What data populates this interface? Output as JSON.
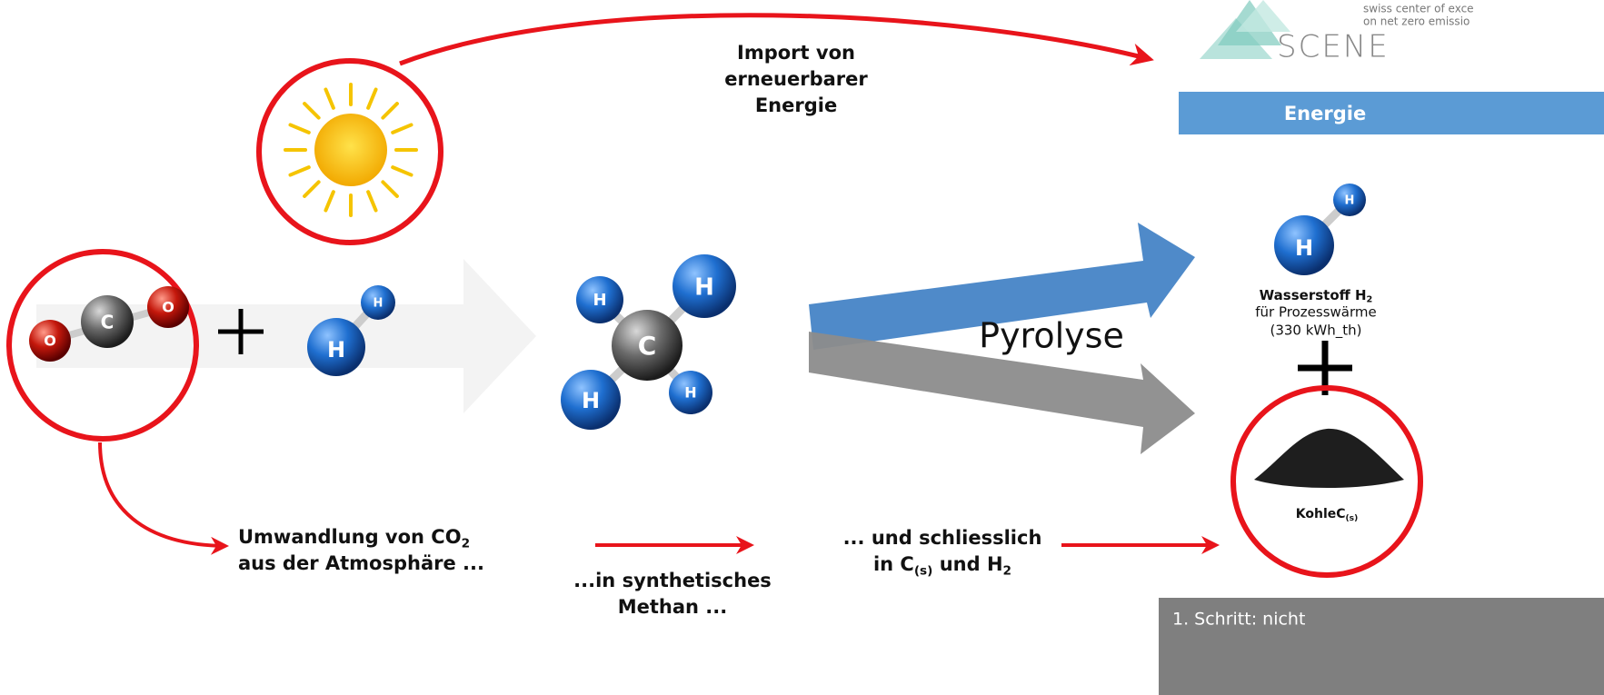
{
  "logo": {
    "line1": "swiss center of exce",
    "line2": "on net zero emissio",
    "name": "SCENE"
  },
  "energy_header": "Energie",
  "import_label": [
    "Import von",
    "erneuerbarer",
    "Energie"
  ],
  "pyrolysis_label": "Pyrolyse",
  "molecules": {
    "co2": [
      "O",
      "C",
      "O"
    ],
    "h2": [
      "H",
      "H"
    ],
    "ch4": [
      "H",
      "H",
      "C",
      "H",
      "H"
    ],
    "h2_product": [
      "H",
      "H"
    ]
  },
  "hydrogen": {
    "title": [
      [
        "Wasserstoff H",
        "2"
      ]
    ],
    "lines": [
      "für Prozesswärme",
      "(330 kWh_th)"
    ]
  },
  "carbon": {
    "label": [
      [
        "KohleC",
        "(s)"
      ]
    ]
  },
  "steps": [
    {
      "lines": [
        [
          "Umwandlung von CO",
          "2"
        ],
        [
          "aus der Atmosphäre ..."
        ]
      ]
    },
    {
      "lines": [
        [
          "...in synthetisches"
        ],
        [
          "Methan ..."
        ]
      ]
    },
    {
      "lines": [
        [
          "... und schliesslich"
        ],
        [
          "in C",
          "(s)",
          " und H",
          "2"
        ]
      ]
    }
  ],
  "footnote": "1.   Schritt: nicht"
}
